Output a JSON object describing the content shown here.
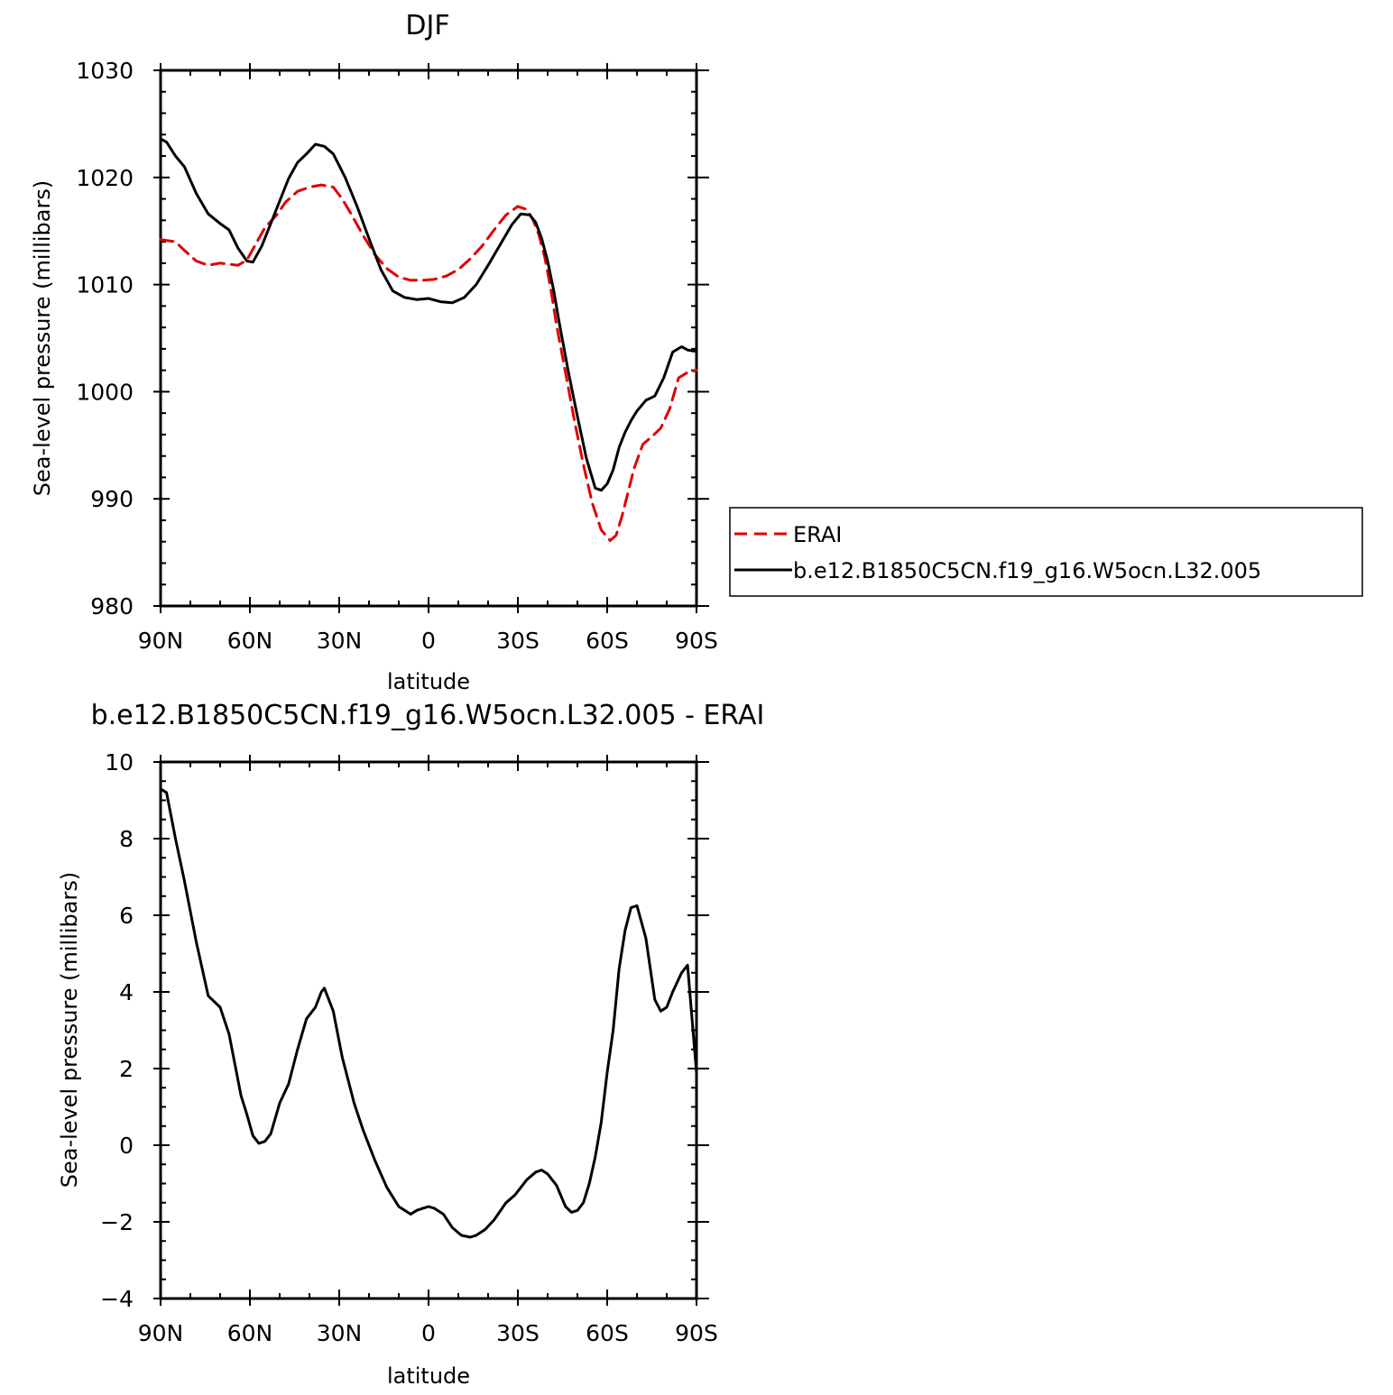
{
  "chart_data": [
    {
      "type": "line",
      "title": "DJF",
      "xlabel": "latitude",
      "ylabel": "Sea-level pressure (millibars)",
      "x_units": "degrees latitude (90 = 90N, -90 = 90S)",
      "xlim": [
        90,
        -90
      ],
      "ylim": [
        980,
        1030
      ],
      "xticks": [
        {
          "value": 90,
          "label": "90N"
        },
        {
          "value": 60,
          "label": "60N"
        },
        {
          "value": 30,
          "label": "30N"
        },
        {
          "value": 0,
          "label": "0"
        },
        {
          "value": -30,
          "label": "30S"
        },
        {
          "value": -60,
          "label": "60S"
        },
        {
          "value": -90,
          "label": "90S"
        }
      ],
      "yticks": [
        {
          "value": 1030,
          "label": "1030"
        },
        {
          "value": 1020,
          "label": "1020"
        },
        {
          "value": 1010,
          "label": "1010"
        },
        {
          "value": 1000,
          "label": "1000"
        },
        {
          "value": 990,
          "label": "990"
        },
        {
          "value": 980,
          "label": "980"
        }
      ],
      "legend": {
        "placement": "right",
        "entries": [
          "ERAI",
          "b.e12.B1850C5CN.f19_g16.W5ocn.L32.005"
        ]
      },
      "series": [
        {
          "name": "ERAI",
          "color": "#e00000",
          "dash": "dashed",
          "x": [
            90,
            85,
            82,
            78,
            74,
            70,
            67,
            64,
            61,
            58,
            55,
            51,
            48,
            44,
            40,
            36,
            32,
            29,
            26,
            22,
            18,
            14,
            10,
            6,
            2,
            -2,
            -6,
            -10,
            -14,
            -18,
            -22,
            -26,
            -30,
            -33,
            -35,
            -37,
            -39,
            -41,
            -43,
            -46,
            -49,
            -52,
            -55,
            -58,
            -61,
            -63,
            -65,
            -67,
            -69,
            -72,
            -75,
            -78,
            -81,
            -84,
            -87,
            -90
          ],
          "values": [
            1014.2,
            1014.0,
            1013.2,
            1012.2,
            1011.8,
            1012.0,
            1011.9,
            1011.8,
            1012.3,
            1013.8,
            1015.3,
            1016.5,
            1017.7,
            1018.7,
            1019.1,
            1019.3,
            1019.1,
            1018.0,
            1016.6,
            1014.6,
            1012.8,
            1011.5,
            1010.7,
            1010.4,
            1010.4,
            1010.5,
            1010.8,
            1011.4,
            1012.4,
            1013.6,
            1015.1,
            1016.5,
            1017.3,
            1017.0,
            1016.1,
            1014.7,
            1012.6,
            1009.7,
            1006.2,
            1001.8,
            997.3,
            993.2,
            989.6,
            987.1,
            986.1,
            986.6,
            988.4,
            990.6,
            992.8,
            995.1,
            995.8,
            996.6,
            998.4,
            1001.3,
            1001.8,
            1002.0
          ]
        },
        {
          "name": "b.e12.B1850C5CN.f19_g16.W5ocn.L32.005",
          "color": "#000000",
          "dash": "solid",
          "x": [
            90,
            88,
            85,
            82,
            78,
            74,
            70,
            67,
            64,
            61,
            59,
            56,
            53,
            50,
            47,
            44,
            41,
            38,
            35,
            32,
            28,
            24,
            20,
            16,
            12,
            8,
            4,
            0,
            -4,
            -8,
            -12,
            -16,
            -20,
            -24,
            -28,
            -31,
            -34,
            -36,
            -38,
            -40,
            -42,
            -44,
            -47,
            -50,
            -53,
            -56,
            -58,
            -60,
            -62,
            -64,
            -66,
            -68,
            -70,
            -73,
            -76,
            -79,
            -82,
            -85,
            -87,
            -89,
            -90
          ],
          "values": [
            1023.6,
            1023.3,
            1022.0,
            1021.0,
            1018.5,
            1016.6,
            1015.7,
            1015.1,
            1013.4,
            1012.2,
            1012.1,
            1013.6,
            1015.7,
            1017.8,
            1019.9,
            1021.4,
            1022.2,
            1023.1,
            1022.9,
            1022.2,
            1020.0,
            1017.3,
            1014.3,
            1011.4,
            1009.4,
            1008.8,
            1008.6,
            1008.7,
            1008.4,
            1008.3,
            1008.8,
            1010.0,
            1011.8,
            1013.7,
            1015.6,
            1016.6,
            1016.5,
            1015.8,
            1014.3,
            1012.2,
            1009.5,
            1006.3,
            1001.8,
            997.7,
            993.8,
            991.0,
            990.8,
            991.4,
            992.7,
            994.8,
            996.2,
            997.3,
            998.2,
            999.2,
            999.6,
            1001.3,
            1003.7,
            1004.2,
            1003.9,
            1003.8,
            1003.8
          ]
        }
      ]
    },
    {
      "type": "line",
      "title": "b.e12.B1850C5CN.f19_g16.W5ocn.L32.005 - ERAI",
      "xlabel": "latitude",
      "ylabel": "Sea-level pressure (millibars)",
      "x_units": "degrees latitude (90 = 90N, -90 = 90S)",
      "xlim": [
        90,
        -90
      ],
      "ylim": [
        -4,
        10
      ],
      "xticks": [
        {
          "value": 90,
          "label": "90N"
        },
        {
          "value": 60,
          "label": "60N"
        },
        {
          "value": 30,
          "label": "30N"
        },
        {
          "value": 0,
          "label": "0"
        },
        {
          "value": -30,
          "label": "30S"
        },
        {
          "value": -60,
          "label": "60S"
        },
        {
          "value": -90,
          "label": "90S"
        }
      ],
      "yticks": [
        {
          "value": 10,
          "label": "10"
        },
        {
          "value": 8,
          "label": "8"
        },
        {
          "value": 6,
          "label": "6"
        },
        {
          "value": 4,
          "label": "4"
        },
        {
          "value": 2,
          "label": "2"
        },
        {
          "value": 0,
          "label": "0"
        },
        {
          "value": -2,
          "label": "−2"
        },
        {
          "value": -4,
          "label": "−4"
        }
      ],
      "series": [
        {
          "color": "#000000",
          "dash": "solid",
          "x": [
            90,
            88,
            85,
            82,
            78,
            74,
            70,
            67,
            65,
            63,
            61,
            59,
            57,
            55,
            53,
            50,
            47,
            44,
            41,
            38,
            36,
            35,
            32,
            29,
            25,
            22,
            18,
            14,
            10,
            6,
            4,
            2,
            0,
            -2,
            -5,
            -8,
            -11,
            -14,
            -16,
            -19,
            -22,
            -26,
            -29,
            -33,
            -36,
            -38,
            -40,
            -43,
            -46,
            -48,
            -50,
            -52,
            -54,
            -56,
            -58,
            -60,
            -62,
            -64,
            -66,
            -68,
            -70,
            -73,
            -76,
            -78,
            -80,
            -82,
            -85,
            -87,
            -90
          ],
          "values": [
            9.3,
            9.2,
            8.0,
            6.9,
            5.3,
            3.9,
            3.6,
            2.9,
            2.1,
            1.3,
            0.8,
            0.25,
            0.05,
            0.1,
            0.3,
            1.1,
            1.6,
            2.5,
            3.3,
            3.6,
            4.0,
            4.1,
            3.5,
            2.3,
            1.1,
            0.4,
            -0.4,
            -1.1,
            -1.6,
            -1.8,
            -1.7,
            -1.65,
            -1.6,
            -1.65,
            -1.8,
            -2.15,
            -2.35,
            -2.4,
            -2.35,
            -2.2,
            -1.95,
            -1.5,
            -1.3,
            -0.9,
            -0.7,
            -0.65,
            -0.75,
            -1.05,
            -1.6,
            -1.75,
            -1.7,
            -1.5,
            -1.0,
            -0.3,
            0.6,
            1.9,
            3.0,
            4.6,
            5.6,
            6.2,
            6.25,
            5.4,
            3.8,
            3.5,
            3.6,
            4.0,
            4.5,
            4.7,
            1.9
          ]
        }
      ]
    }
  ]
}
